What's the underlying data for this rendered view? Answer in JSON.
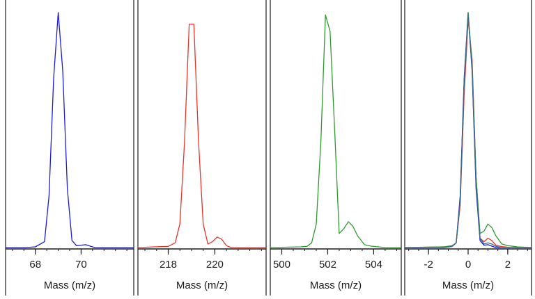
{
  "colors": {
    "background": "#ffffff",
    "border": "#1a1a1a",
    "axis": "#1a1a1a",
    "blue": "#1a1adc",
    "red": "#e8332a",
    "green": "#2e9a2e",
    "slate": "#3d6a8c"
  },
  "chart_data": [
    {
      "type": "line",
      "xlabel": "Mass (m/z)",
      "xlim": [
        66.7,
        72.3
      ],
      "ylim": [
        0,
        1.0
      ],
      "ticks": [
        68,
        70
      ],
      "tick_labels": [
        "68",
        "70"
      ],
      "grid": false,
      "series": [
        {
          "color": "#1a1adc",
          "x": [
            66.7,
            67.6,
            68.0,
            68.4,
            68.6,
            68.8,
            69.0,
            69.2,
            69.4,
            69.6,
            69.8,
            70.0,
            70.2,
            70.4,
            70.6,
            70.8,
            71.2,
            72.3
          ],
          "y": [
            0.0,
            0.0,
            0.003,
            0.025,
            0.22,
            0.72,
            1.0,
            0.75,
            0.25,
            0.03,
            0.008,
            0.01,
            0.012,
            0.006,
            0.0,
            0.0,
            0.0,
            0.0
          ]
        }
      ]
    },
    {
      "type": "line",
      "xlabel": "Mass (m/z)",
      "xlim": [
        216.7,
        222.2
      ],
      "ylim": [
        0,
        1.0
      ],
      "ticks": [
        218,
        220
      ],
      "tick_labels": [
        "218",
        "220"
      ],
      "grid": false,
      "series": [
        {
          "color": "#e8332a",
          "x": [
            216.7,
            217.4,
            218.0,
            218.3,
            218.5,
            218.7,
            218.9,
            219.1,
            219.3,
            219.5,
            219.7,
            219.9,
            220.1,
            220.3,
            220.5,
            220.7,
            221.2,
            222.2
          ],
          "y": [
            0.0,
            0.003,
            0.005,
            0.02,
            0.1,
            0.45,
            0.95,
            0.95,
            0.45,
            0.1,
            0.015,
            0.025,
            0.045,
            0.035,
            0.008,
            0.0,
            0.0,
            0.0
          ]
        }
      ]
    },
    {
      "type": "line",
      "xlabel": "Mass (m/z)",
      "xlim": [
        499.5,
        505.2
      ],
      "ylim": [
        0,
        1.0
      ],
      "ticks": [
        500,
        502,
        504
      ],
      "tick_labels": [
        "500",
        "502",
        "504"
      ],
      "grid": false,
      "series": [
        {
          "color": "#2e9a2e",
          "x": [
            499.5,
            500.8,
            501.1,
            501.3,
            501.5,
            501.7,
            501.9,
            502.1,
            502.3,
            502.5,
            502.7,
            502.9,
            503.1,
            503.3,
            503.6,
            503.9,
            504.5,
            505.2
          ],
          "y": [
            0.0,
            0.003,
            0.005,
            0.02,
            0.1,
            0.45,
            0.99,
            0.92,
            0.5,
            0.06,
            0.08,
            0.11,
            0.09,
            0.05,
            0.012,
            0.006,
            0.0,
            0.0
          ]
        }
      ]
    },
    {
      "type": "line",
      "xlabel": "Mass (m/z)",
      "xlim": [
        -3.2,
        3.2
      ],
      "ylim": [
        0,
        1.0
      ],
      "ticks": [
        -2,
        0,
        2
      ],
      "tick_labels": [
        "-2",
        "0",
        "2"
      ],
      "grid": false,
      "series": [
        {
          "color": "#1a1adc",
          "x": [
            -3.2,
            -1.2,
            -0.8,
            -0.6,
            -0.4,
            -0.2,
            0.0,
            0.2,
            0.4,
            0.6,
            0.8,
            1.0,
            1.2,
            1.4,
            1.7,
            3.2
          ],
          "y": [
            0.0,
            0.0,
            0.005,
            0.02,
            0.22,
            0.72,
            1.0,
            0.75,
            0.25,
            0.03,
            0.01,
            0.012,
            0.006,
            0.0,
            0.0,
            0.0
          ]
        },
        {
          "color": "#e8332a",
          "x": [
            -3.2,
            -1.2,
            -0.8,
            -0.6,
            -0.4,
            -0.2,
            0.0,
            0.2,
            0.4,
            0.6,
            0.8,
            1.0,
            1.2,
            1.4,
            1.7,
            2.2,
            3.2
          ],
          "y": [
            0.0,
            0.003,
            0.008,
            0.02,
            0.18,
            0.65,
            0.97,
            0.8,
            0.3,
            0.04,
            0.025,
            0.04,
            0.03,
            0.01,
            0.004,
            0.0,
            0.0
          ]
        },
        {
          "color": "#2e9a2e",
          "x": [
            -3.2,
            -1.2,
            -0.8,
            -0.6,
            -0.4,
            -0.2,
            0.0,
            0.2,
            0.4,
            0.6,
            0.8,
            1.0,
            1.2,
            1.4,
            1.7,
            2.0,
            2.5,
            3.2
          ],
          "y": [
            0.0,
            0.003,
            0.008,
            0.02,
            0.2,
            0.7,
            1.0,
            0.78,
            0.3,
            0.06,
            0.07,
            0.1,
            0.085,
            0.05,
            0.015,
            0.008,
            0.003,
            0.0
          ]
        },
        {
          "color": "#3d6a8c",
          "x": [
            -3.2,
            -1.2,
            -0.8,
            -0.6,
            -0.4,
            -0.2,
            0.0,
            0.2,
            0.4,
            0.6,
            0.8,
            1.0,
            1.2,
            1.4,
            1.7,
            3.2
          ],
          "y": [
            0.0,
            0.0,
            0.005,
            0.02,
            0.2,
            0.7,
            0.99,
            0.76,
            0.27,
            0.04,
            0.015,
            0.02,
            0.015,
            0.005,
            0.0,
            0.0
          ]
        }
      ]
    }
  ]
}
